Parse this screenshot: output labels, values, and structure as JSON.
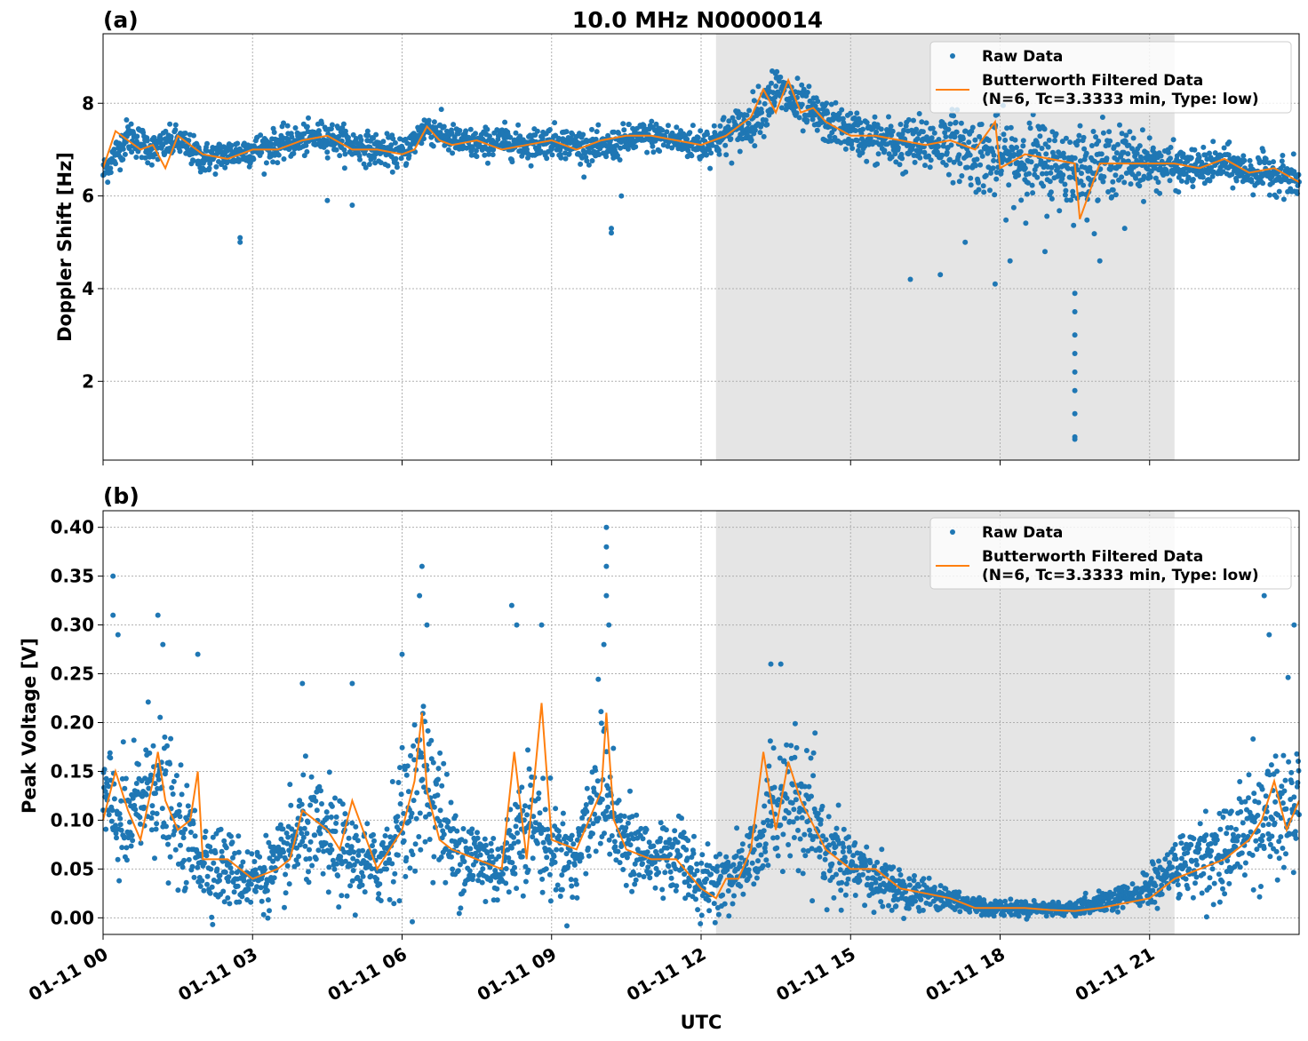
{
  "figure": {
    "title": "10.0 MHz N0000014",
    "xlabel": "UTC"
  },
  "colors": {
    "raw": "#1f77b4",
    "filtered": "#ff7f0e",
    "shade": "#e5e5e5",
    "grid": "#b0b0b0"
  },
  "chart_data": [
    {
      "type": "scatter",
      "panel_label": "(a)",
      "ylabel": "Doppler Shift [Hz]",
      "xlim": [
        "01-11 00:00",
        "01-11 24:00"
      ],
      "ylim": [
        0.3,
        9.5
      ],
      "xticks": [
        0,
        3,
        6,
        9,
        12,
        15,
        18,
        21
      ],
      "yticks": [
        2,
        4,
        6,
        8
      ],
      "ytick_labels": [
        "2",
        "4",
        "6",
        "8"
      ],
      "shaded_interval_hours": [
        12.3,
        21.5
      ],
      "grid": true,
      "legend": {
        "position": "top-right",
        "entries": [
          "Raw Data",
          "Butterworth Filtered Data",
          "(N=6, Tc=3.3333 min, Type: low)"
        ]
      },
      "series": [
        {
          "name": "Raw Data",
          "style": "points",
          "x_hours": [
            0,
            0.5,
            1,
            1.5,
            2,
            2.5,
            3,
            3.5,
            4,
            4.5,
            5,
            5.5,
            6,
            6.5,
            7,
            7.5,
            8,
            8.5,
            9,
            9.5,
            10,
            10.5,
            11,
            11.5,
            12,
            12.5,
            13,
            13.5,
            14,
            14.5,
            15,
            15.5,
            16,
            16.5,
            17,
            17.5,
            18,
            18.5,
            19,
            19.5,
            20,
            20.5,
            21,
            21.5,
            22,
            22.5,
            23,
            23.5,
            24
          ],
          "y": [
            6.5,
            7.3,
            7.0,
            7.2,
            6.8,
            6.9,
            7.0,
            7.1,
            7.2,
            7.3,
            7.1,
            7.0,
            6.9,
            7.5,
            7.2,
            7.1,
            7.2,
            7.1,
            7.2,
            7.1,
            7.0,
            7.2,
            7.3,
            7.2,
            7.1,
            7.3,
            7.6,
            8.3,
            7.9,
            7.6,
            7.4,
            7.2,
            7.1,
            7.1,
            7.2,
            6.9,
            6.8,
            6.8,
            6.7,
            6.6,
            6.7,
            6.8,
            6.7,
            6.6,
            6.6,
            6.7,
            6.5,
            6.5,
            6.3
          ],
          "spread_hz": [
            0.3,
            0.35,
            0.3,
            0.3,
            0.3,
            0.3,
            0.3,
            0.3,
            0.3,
            0.3,
            0.3,
            0.3,
            0.3,
            0.3,
            0.3,
            0.3,
            0.3,
            0.3,
            0.3,
            0.3,
            0.3,
            0.3,
            0.3,
            0.3,
            0.35,
            0.4,
            0.45,
            0.5,
            0.45,
            0.4,
            0.4,
            0.45,
            0.5,
            0.55,
            0.6,
            0.7,
            0.8,
            0.8,
            0.8,
            0.8,
            0.7,
            0.6,
            0.5,
            0.4,
            0.35,
            0.35,
            0.35,
            0.35,
            0.35
          ],
          "outliers": [
            [
              2.75,
              5.0
            ],
            [
              2.75,
              5.1
            ],
            [
              4.5,
              5.9
            ],
            [
              5.0,
              5.8
            ],
            [
              10.2,
              5.2
            ],
            [
              10.2,
              5.3
            ],
            [
              10.4,
              6.0
            ],
            [
              16.2,
              4.2
            ],
            [
              16.8,
              4.3
            ],
            [
              17.3,
              5.0
            ],
            [
              17.9,
              4.1
            ],
            [
              18.2,
              4.6
            ],
            [
              18.9,
              4.8
            ],
            [
              19.5,
              3.9
            ],
            [
              19.5,
              3.5
            ],
            [
              19.5,
              3.0
            ],
            [
              19.5,
              2.6
            ],
            [
              19.5,
              2.2
            ],
            [
              19.5,
              1.8
            ],
            [
              19.5,
              1.3
            ],
            [
              19.5,
              0.8
            ],
            [
              19.5,
              0.75
            ],
            [
              20.0,
              4.6
            ],
            [
              20.5,
              5.3
            ]
          ]
        },
        {
          "name": "Butterworth Filtered Data",
          "style": "line",
          "x_hours": [
            0,
            0.25,
            0.5,
            0.75,
            1,
            1.25,
            1.5,
            1.75,
            2,
            2.5,
            3,
            3.5,
            4,
            4.5,
            5,
            5.5,
            6,
            6.25,
            6.5,
            6.75,
            7,
            7.5,
            8,
            8.5,
            9,
            9.5,
            10,
            10.5,
            11,
            11.5,
            12,
            12.5,
            13,
            13.25,
            13.5,
            13.75,
            14,
            14.25,
            14.5,
            15,
            15.5,
            16,
            16.5,
            17,
            17.5,
            17.9,
            18,
            18.5,
            19,
            19.5,
            19.6,
            20,
            20.5,
            21,
            21.5,
            22,
            22.5,
            23,
            23.5,
            24
          ],
          "y": [
            6.6,
            7.4,
            7.2,
            7.0,
            7.1,
            6.6,
            7.3,
            7.1,
            6.9,
            6.8,
            7.0,
            7.0,
            7.2,
            7.3,
            7.0,
            7.0,
            6.9,
            7.0,
            7.5,
            7.2,
            7.1,
            7.2,
            7.0,
            7.1,
            7.2,
            7.0,
            7.2,
            7.3,
            7.3,
            7.2,
            7.1,
            7.3,
            7.7,
            8.3,
            7.8,
            8.5,
            7.8,
            7.9,
            7.6,
            7.3,
            7.3,
            7.2,
            7.1,
            7.2,
            7.0,
            7.6,
            6.6,
            6.9,
            6.8,
            6.7,
            5.5,
            6.7,
            6.7,
            6.7,
            6.7,
            6.6,
            6.8,
            6.5,
            6.6,
            6.3
          ]
        }
      ]
    },
    {
      "type": "scatter",
      "panel_label": "(b)",
      "ylabel": "Peak Voltage [V]",
      "xlim": [
        "01-11 00:00",
        "01-11 24:00"
      ],
      "ylim": [
        -0.017,
        0.417
      ],
      "xticks": [
        0,
        3,
        6,
        9,
        12,
        15,
        18,
        21
      ],
      "xtick_labels": [
        "01-11 00",
        "01-11 03",
        "01-11 06",
        "01-11 09",
        "01-11 12",
        "01-11 15",
        "01-11 18",
        "01-11 21"
      ],
      "yticks": [
        0,
        0.05,
        0.1,
        0.15,
        0.2,
        0.25,
        0.3,
        0.35,
        0.4
      ],
      "ytick_labels": [
        "0.00",
        "0.05",
        "0.10",
        "0.15",
        "0.20",
        "0.25",
        "0.30",
        "0.35",
        "0.40"
      ],
      "shaded_interval_hours": [
        12.3,
        21.5
      ],
      "grid": true,
      "legend": {
        "position": "top-right",
        "entries": [
          "Raw Data",
          "Butterworth Filtered Data",
          "(N=6, Tc=3.3333 min, Type: low)"
        ]
      },
      "series": [
        {
          "name": "Raw Data",
          "style": "points",
          "x_hours": [
            0,
            0.5,
            1,
            1.5,
            2,
            2.5,
            3,
            3.5,
            4,
            4.5,
            5,
            5.5,
            6,
            6.5,
            7,
            7.5,
            8,
            8.5,
            9,
            9.5,
            10,
            10.5,
            11,
            11.5,
            12,
            12.5,
            13,
            13.5,
            14,
            14.5,
            15,
            15.5,
            16,
            16.5,
            17,
            17.5,
            18,
            18.5,
            19,
            19.5,
            20,
            20.5,
            21,
            21.5,
            22,
            22.5,
            23,
            23.5,
            24
          ],
          "y": [
            0.12,
            0.09,
            0.15,
            0.09,
            0.06,
            0.05,
            0.04,
            0.05,
            0.09,
            0.08,
            0.06,
            0.05,
            0.1,
            0.15,
            0.07,
            0.06,
            0.05,
            0.11,
            0.07,
            0.06,
            0.15,
            0.07,
            0.06,
            0.07,
            0.03,
            0.04,
            0.06,
            0.12,
            0.11,
            0.07,
            0.05,
            0.04,
            0.03,
            0.025,
            0.02,
            0.012,
            0.01,
            0.01,
            0.01,
            0.008,
            0.015,
            0.02,
            0.03,
            0.05,
            0.06,
            0.07,
            0.09,
            0.11,
            0.12
          ],
          "spread_v": [
            0.06,
            0.05,
            0.07,
            0.05,
            0.04,
            0.035,
            0.03,
            0.035,
            0.05,
            0.05,
            0.04,
            0.035,
            0.06,
            0.08,
            0.045,
            0.04,
            0.035,
            0.06,
            0.045,
            0.04,
            0.08,
            0.045,
            0.04,
            0.045,
            0.025,
            0.03,
            0.04,
            0.06,
            0.06,
            0.04,
            0.03,
            0.025,
            0.02,
            0.015,
            0.012,
            0.008,
            0.007,
            0.006,
            0.006,
            0.006,
            0.01,
            0.012,
            0.018,
            0.03,
            0.035,
            0.04,
            0.05,
            0.06,
            0.065
          ],
          "outliers": [
            [
              0.2,
              0.35
            ],
            [
              0.2,
              0.31
            ],
            [
              0.3,
              0.29
            ],
            [
              1.1,
              0.31
            ],
            [
              1.2,
              0.28
            ],
            [
              1.9,
              0.27
            ],
            [
              4.0,
              0.24
            ],
            [
              5.0,
              0.24
            ],
            [
              6.0,
              0.27
            ],
            [
              6.4,
              0.36
            ],
            [
              6.35,
              0.33
            ],
            [
              6.5,
              0.3
            ],
            [
              8.2,
              0.32
            ],
            [
              8.3,
              0.3
            ],
            [
              8.8,
              0.3
            ],
            [
              10.1,
              0.4
            ],
            [
              10.1,
              0.38
            ],
            [
              10.1,
              0.36
            ],
            [
              10.1,
              0.33
            ],
            [
              10.15,
              0.3
            ],
            [
              10.05,
              0.28
            ],
            [
              13.4,
              0.26
            ],
            [
              13.6,
              0.26
            ],
            [
              23.3,
              0.33
            ],
            [
              23.4,
              0.29
            ],
            [
              23.9,
              0.3
            ]
          ]
        },
        {
          "name": "Butterworth Filtered Data",
          "style": "line",
          "x_hours": [
            0,
            0.25,
            0.5,
            0.75,
            1,
            1.1,
            1.25,
            1.5,
            1.75,
            1.9,
            2,
            2.5,
            3,
            3.5,
            3.75,
            4,
            4.5,
            4.75,
            5,
            5.5,
            6,
            6.25,
            6.4,
            6.5,
            6.75,
            7,
            7.5,
            8,
            8.25,
            8.5,
            8.8,
            9,
            9.5,
            10,
            10.1,
            10.25,
            10.5,
            11,
            11.5,
            12,
            12.3,
            12.5,
            12.75,
            13,
            13.25,
            13.5,
            13.75,
            14,
            14.5,
            15,
            15.5,
            16,
            16.5,
            17,
            17.5,
            18,
            18.5,
            19,
            19.5,
            20,
            20.5,
            21,
            21.5,
            22,
            22.5,
            23,
            23.25,
            23.5,
            23.75,
            24
          ],
          "y": [
            0.1,
            0.15,
            0.11,
            0.08,
            0.14,
            0.17,
            0.12,
            0.09,
            0.1,
            0.15,
            0.06,
            0.06,
            0.04,
            0.05,
            0.06,
            0.11,
            0.09,
            0.07,
            0.12,
            0.05,
            0.09,
            0.14,
            0.21,
            0.13,
            0.08,
            0.07,
            0.06,
            0.05,
            0.17,
            0.06,
            0.22,
            0.08,
            0.07,
            0.13,
            0.21,
            0.1,
            0.07,
            0.06,
            0.06,
            0.03,
            0.02,
            0.04,
            0.04,
            0.07,
            0.17,
            0.09,
            0.16,
            0.12,
            0.07,
            0.05,
            0.05,
            0.03,
            0.025,
            0.02,
            0.01,
            0.01,
            0.01,
            0.008,
            0.007,
            0.01,
            0.015,
            0.02,
            0.04,
            0.05,
            0.06,
            0.08,
            0.1,
            0.14,
            0.09,
            0.12
          ]
        }
      ]
    }
  ]
}
